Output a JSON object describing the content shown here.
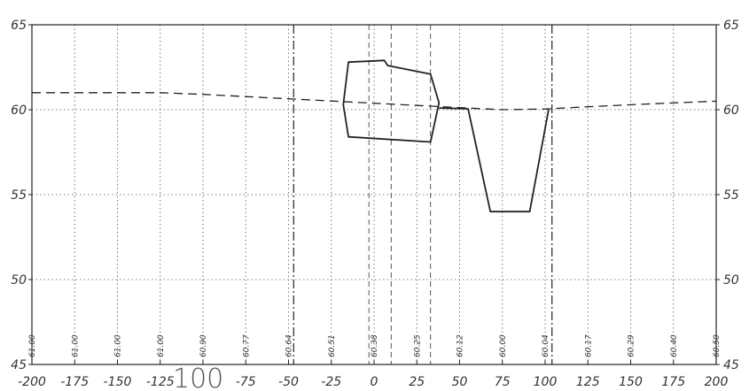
{
  "chart_data": {
    "type": "line",
    "title": "",
    "xlabel": "",
    "ylabel": "",
    "xlim": [
      -200,
      200
    ],
    "ylim": [
      45,
      65
    ],
    "grid": true,
    "x_ticks": [
      -200,
      -175,
      -150,
      -125,
      -100,
      -75,
      -50,
      -25,
      0,
      25,
      50,
      75,
      100,
      125,
      150,
      175,
      200
    ],
    "x_tick_labels": [
      "-200",
      "-175",
      "-150",
      "-125",
      "",
      "-75",
      "-50",
      "-25",
      "0",
      "25",
      "50",
      "75",
      "100",
      "125",
      "150",
      "175",
      "200"
    ],
    "y_ticks": [
      45,
      50,
      55,
      60,
      65
    ],
    "y_tick_labels": [
      "45",
      "50",
      "55",
      "60",
      "65"
    ],
    "handwritten_note": {
      "x": -100,
      "text": "100"
    },
    "vertical_dashdot_lines": [
      -47,
      104
    ],
    "vertical_dashed_lines": [
      -3,
      10,
      33
    ],
    "series": [
      {
        "style": "dashed",
        "x": [
          -200,
          -175,
          -150,
          -125,
          -100,
          -75,
          -50,
          -25,
          0,
          25,
          50,
          75,
          100,
          125,
          150,
          175,
          200
        ],
        "y": [
          61.0,
          61.0,
          61.0,
          61.0,
          60.9,
          60.77,
          60.64,
          60.51,
          60.38,
          60.25,
          60.12,
          60.0,
          60.04,
          60.17,
          60.29,
          60.4,
          60.5
        ]
      },
      {
        "style": "solid",
        "x": [
          -18,
          -15,
          6,
          8,
          33,
          38,
          33,
          -15
        ],
        "y": [
          60.3,
          62.8,
          62.9,
          62.6,
          62.1,
          60.4,
          58.1,
          58.4
        ]
      },
      {
        "style": "solid",
        "x": [
          38,
          55,
          68,
          91,
          102
        ],
        "y": [
          60.1,
          60.05,
          54.0,
          54.0,
          60.0
        ]
      }
    ],
    "elevation_labels": [
      {
        "x": -200,
        "text": "61.00"
      },
      {
        "x": -175,
        "text": "61.00"
      },
      {
        "x": -150,
        "text": "61.00"
      },
      {
        "x": -125,
        "text": "61.00"
      },
      {
        "x": -100,
        "text": "60.90"
      },
      {
        "x": -75,
        "text": "60.77"
      },
      {
        "x": -50,
        "text": "60.64"
      },
      {
        "x": -25,
        "text": "60.51"
      },
      {
        "x": 0,
        "text": "60.38"
      },
      {
        "x": 25,
        "text": "60.25"
      },
      {
        "x": 50,
        "text": "60.12"
      },
      {
        "x": 75,
        "text": "60.00"
      },
      {
        "x": 100,
        "text": "60.04"
      },
      {
        "x": 125,
        "text": "60.17"
      },
      {
        "x": 150,
        "text": "60.29"
      },
      {
        "x": 175,
        "text": "60.40"
      },
      {
        "x": 200,
        "text": "60.50"
      }
    ]
  }
}
